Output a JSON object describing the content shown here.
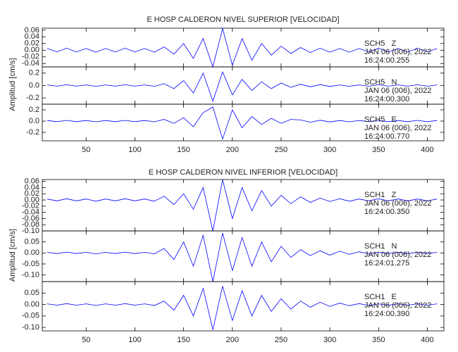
{
  "chart_data": [
    {
      "type": "seismogram",
      "title": "E HOSP CALDERON NIVEL SUPERIOR [VELOCIDAD]",
      "ylabel": "Amplitud [cm/s]",
      "color": "#0000ff",
      "xlim": [
        5,
        417
      ],
      "xticks": [
        50,
        100,
        150,
        200,
        250,
        300,
        350,
        400
      ],
      "x": [
        10,
        20,
        30,
        40,
        50,
        60,
        70,
        80,
        90,
        100,
        110,
        120,
        130,
        140,
        150,
        160,
        170,
        180,
        190,
        200,
        210,
        220,
        230,
        240,
        250,
        260,
        270,
        280,
        290,
        300,
        310,
        320,
        330,
        340,
        350,
        360,
        370,
        380,
        390,
        400,
        410
      ],
      "panels": [
        {
          "station": "SCH5   Z",
          "date": "JAN 06 (006), 2022",
          "time": "16:24:00.255",
          "ylim": [
            -0.05,
            0.066
          ],
          "yticks": [
            -0.04,
            -0.02,
            {
              "value": 0,
              "label": "0.00"
            },
            0.02,
            0.04,
            0.06
          ],
          "values": [
            0.005,
            -0.005,
            0.006,
            -0.005,
            0.005,
            -0.006,
            0.005,
            -0.005,
            0.006,
            -0.005,
            0.005,
            -0.006,
            0.01,
            -0.012,
            0.02,
            -0.025,
            0.035,
            -0.05,
            0.065,
            -0.045,
            0.035,
            -0.03,
            0.02,
            -0.015,
            0.012,
            -0.01,
            0.008,
            -0.007,
            0.006,
            -0.006,
            0.005,
            -0.006,
            0.005,
            -0.005,
            0.006,
            -0.005,
            0.005,
            -0.005,
            0.006,
            -0.005,
            0.005
          ]
        },
        {
          "station": "SCH5   N",
          "date": "JAN 06 (006), 2022",
          "time": "16:24:00.300",
          "ylim": [
            -0.3,
            0.3
          ],
          "yticks": [
            -0.2,
            {
              "value": 0,
              "label": "0.0"
            },
            0.2
          ],
          "values": [
            0.01,
            -0.01,
            0.012,
            -0.01,
            0.01,
            -0.012,
            0.01,
            -0.01,
            0.012,
            -0.01,
            0.01,
            -0.012,
            0.03,
            -0.05,
            0.08,
            -0.12,
            0.2,
            -0.25,
            0.22,
            -0.15,
            0.1,
            -0.08,
            0.06,
            -0.05,
            0.04,
            -0.03,
            0.02,
            -0.02,
            0.015,
            -0.015,
            0.01,
            -0.012,
            0.01,
            -0.01,
            0.012,
            -0.01,
            0.01,
            -0.01,
            0.012,
            -0.01,
            0.01
          ]
        },
        {
          "station": "SCH5   E",
          "date": "JAN 06 (006), 2022",
          "time": "16:24:00.770",
          "ylim": [
            -0.35,
            0.3
          ],
          "yticks": [
            -0.2,
            {
              "value": 0,
              "label": "0.0"
            },
            0.2
          ],
          "values": [
            0.01,
            -0.01,
            0.012,
            -0.01,
            0.01,
            -0.012,
            0.01,
            -0.01,
            0.012,
            -0.01,
            0.01,
            -0.012,
            0.03,
            -0.04,
            0.06,
            -0.1,
            0.15,
            0.25,
            -0.32,
            0.2,
            -0.12,
            0.08,
            -0.06,
            0.05,
            -0.04,
            0.03,
            0.02,
            -0.02,
            0.015,
            -0.015,
            0.01,
            -0.012,
            0.01,
            -0.01,
            0.012,
            -0.01,
            0.01,
            -0.01,
            0.012,
            -0.01,
            0.01
          ]
        }
      ]
    },
    {
      "type": "seismogram",
      "title": "E HOSP CALDERON NIVEL INFERIOR [VELOCIDAD]",
      "ylabel": "Amplitud [cm/s]",
      "color": "#0000ff",
      "xlim": [
        5,
        417
      ],
      "xticks": [
        50,
        100,
        150,
        200,
        250,
        300,
        350,
        400
      ],
      "x": [
        10,
        20,
        30,
        40,
        50,
        60,
        70,
        80,
        90,
        100,
        110,
        120,
        130,
        140,
        150,
        160,
        170,
        180,
        190,
        200,
        210,
        220,
        230,
        240,
        250,
        260,
        270,
        280,
        290,
        300,
        310,
        320,
        330,
        340,
        350,
        360,
        370,
        380,
        390,
        400,
        410
      ],
      "panels": [
        {
          "station": "SCH1   Z",
          "date": "JAN 06 (006), 2022",
          "time": "16:24:00.350",
          "ylim": [
            -0.1,
            0.066
          ],
          "yticks": [
            {
              "value": -0.1,
              "label": "-0.10"
            },
            -0.08,
            -0.06,
            -0.04,
            -0.02,
            {
              "value": 0,
              "label": "0.00"
            },
            0.02,
            0.04,
            0.06
          ],
          "values": [
            0.003,
            -0.003,
            0.004,
            -0.003,
            0.003,
            -0.004,
            0.003,
            -0.003,
            0.004,
            -0.003,
            0.003,
            -0.004,
            0.012,
            -0.015,
            0.02,
            -0.03,
            0.04,
            -0.1,
            0.065,
            -0.06,
            0.04,
            -0.035,
            0.03,
            -0.02,
            0.015,
            -0.012,
            0.01,
            -0.008,
            0.006,
            -0.005,
            0.004,
            -0.004,
            0.003,
            -0.003,
            0.004,
            -0.003,
            0.003,
            -0.003,
            0.003,
            -0.003,
            0.003
          ]
        },
        {
          "station": "SCH1   N",
          "date": "JAN 06 (006), 2022",
          "time": "16:24:01.275",
          "ylim": [
            -0.13,
            0.1
          ],
          "yticks": [
            {
              "value": -0.1,
              "label": "-0.10"
            },
            -0.05,
            {
              "value": 0,
              "label": "0.00"
            },
            0.05
          ],
          "values": [
            0.003,
            -0.003,
            0.004,
            -0.003,
            0.003,
            -0.004,
            0.003,
            -0.003,
            0.004,
            -0.003,
            0.003,
            -0.004,
            0.02,
            -0.03,
            0.05,
            -0.06,
            0.08,
            -0.13,
            0.09,
            -0.08,
            0.07,
            -0.06,
            0.05,
            -0.04,
            0.03,
            -0.02,
            0.015,
            -0.012,
            0.01,
            -0.01,
            0.008,
            -0.006,
            0.005,
            -0.004,
            0.004,
            -0.003,
            0.003,
            -0.003,
            0.003,
            -0.003,
            0.003
          ]
        },
        {
          "station": "SCH1   E",
          "date": "JAN 06 (006), 2022",
          "time": "16:24:00.390",
          "ylim": [
            -0.115,
            0.1
          ],
          "yticks": [
            {
              "value": -0.1,
              "label": "-0.10"
            },
            -0.05,
            {
              "value": 0,
              "label": "0.00"
            },
            0.05
          ],
          "values": [
            0.003,
            -0.003,
            0.004,
            -0.003,
            0.003,
            -0.004,
            0.003,
            -0.003,
            0.004,
            -0.003,
            0.003,
            -0.004,
            0.015,
            -0.025,
            0.04,
            -0.05,
            0.07,
            -0.11,
            0.08,
            -0.07,
            0.06,
            -0.05,
            0.04,
            -0.03,
            0.025,
            -0.02,
            0.015,
            -0.012,
            0.01,
            -0.008,
            0.006,
            -0.005,
            0.004,
            -0.004,
            0.003,
            -0.003,
            0.003,
            -0.003,
            0.003,
            -0.003,
            0.003
          ]
        }
      ]
    }
  ]
}
